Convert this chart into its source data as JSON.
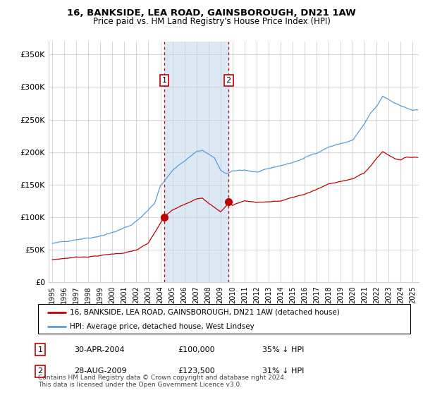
{
  "title": "16, BANKSIDE, LEA ROAD, GAINSBOROUGH, DN21 1AW",
  "subtitle": "Price paid vs. HM Land Registry's House Price Index (HPI)",
  "ylabel_ticks": [
    "£0",
    "£50K",
    "£100K",
    "£150K",
    "£200K",
    "£250K",
    "£300K",
    "£350K"
  ],
  "ytick_values": [
    0,
    50000,
    100000,
    150000,
    200000,
    250000,
    300000,
    350000
  ],
  "ylim": [
    0,
    370000
  ],
  "xlim_start": 1994.7,
  "xlim_end": 2025.5,
  "sale1_date": 2004.33,
  "sale1_price": 100000,
  "sale1_label": "1",
  "sale1_text": "30-APR-2004",
  "sale1_price_text": "£100,000",
  "sale1_pct": "35% ↓ HPI",
  "sale2_date": 2009.67,
  "sale2_price": 123500,
  "sale2_label": "2",
  "sale2_text": "28-AUG-2009",
  "sale2_price_text": "£123,500",
  "sale2_pct": "31% ↓ HPI",
  "hpi_color": "#5b9bd5",
  "price_color": "#c00000",
  "shade_color": "#dce9f5",
  "grid_color": "#d0d0d0",
  "background_color": "#ffffff",
  "legend_label1": "16, BANKSIDE, LEA ROAD, GAINSBOROUGH, DN21 1AW (detached house)",
  "legend_label2": "HPI: Average price, detached house, West Lindsey",
  "footer": "Contains HM Land Registry data © Crown copyright and database right 2024.\nThis data is licensed under the Open Government Licence v3.0.",
  "hpi_anchors_x": [
    1995.0,
    1996.0,
    1997.0,
    1998.5,
    2000.0,
    2001.5,
    2002.5,
    2003.5,
    2004.0,
    2005.0,
    2006.0,
    2007.0,
    2007.5,
    2008.5,
    2009.0,
    2009.5,
    2010.0,
    2011.0,
    2012.0,
    2013.0,
    2014.0,
    2015.0,
    2016.0,
    2017.0,
    2018.0,
    2019.0,
    2020.0,
    2021.0,
    2021.5,
    2022.0,
    2022.5,
    2023.0,
    2023.5,
    2024.0,
    2024.5,
    2025.0
  ],
  "hpi_anchors_y": [
    60000,
    62000,
    67000,
    72000,
    80000,
    90000,
    105000,
    125000,
    152000,
    175000,
    190000,
    205000,
    207000,
    195000,
    175000,
    170000,
    173000,
    175000,
    172000,
    175000,
    180000,
    185000,
    192000,
    200000,
    210000,
    215000,
    220000,
    245000,
    260000,
    270000,
    285000,
    280000,
    275000,
    272000,
    268000,
    265000
  ],
  "price_anchors_x": [
    1995.0,
    1996.0,
    1997.0,
    1998.0,
    1999.0,
    2000.0,
    2001.0,
    2002.0,
    2003.0,
    2003.5,
    2004.0,
    2004.33,
    2005.0,
    2006.0,
    2007.0,
    2007.5,
    2008.0,
    2008.5,
    2009.0,
    2009.5,
    2009.67,
    2010.0,
    2010.5,
    2011.0,
    2012.0,
    2013.0,
    2014.0,
    2015.0,
    2016.0,
    2017.0,
    2018.0,
    2019.0,
    2020.0,
    2021.0,
    2021.5,
    2022.0,
    2022.5,
    2023.0,
    2023.5,
    2024.0,
    2024.5
  ],
  "price_anchors_y": [
    35000,
    37000,
    39000,
    40000,
    42000,
    44000,
    46000,
    50000,
    60000,
    75000,
    90000,
    100000,
    110000,
    118000,
    128000,
    130000,
    122000,
    115000,
    108000,
    118000,
    123500,
    118000,
    122000,
    125000,
    123000,
    124000,
    125000,
    130000,
    135000,
    142000,
    150000,
    155000,
    158000,
    168000,
    178000,
    190000,
    200000,
    195000,
    190000,
    188000,
    192000
  ]
}
